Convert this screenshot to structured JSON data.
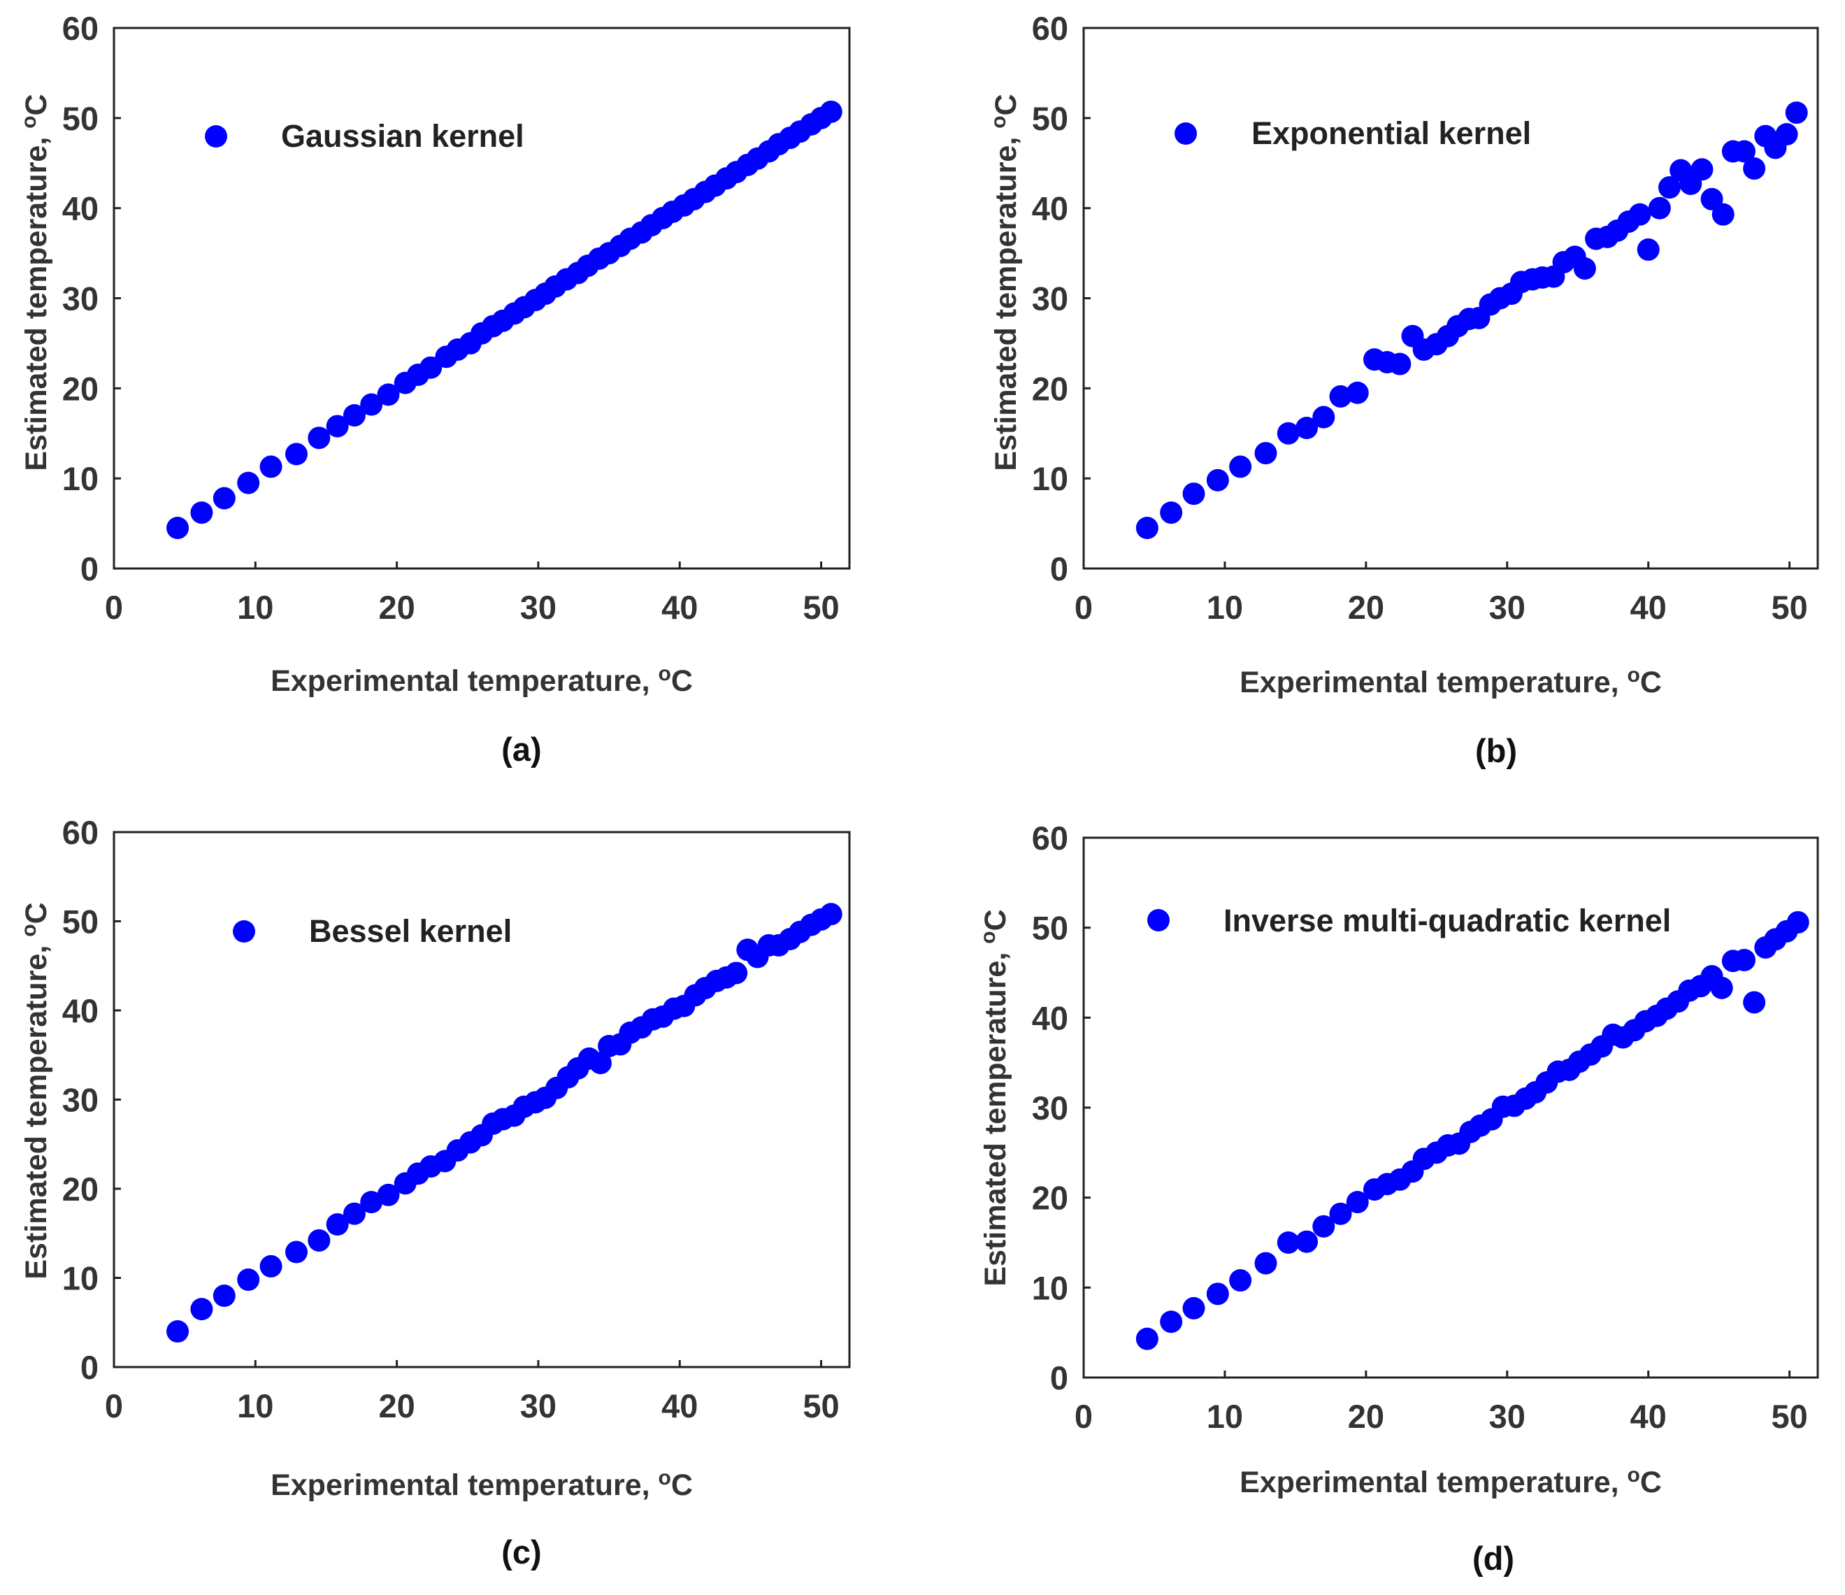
{
  "colors": {
    "marker": "#0000ff",
    "axis": "#222222",
    "text": "#333333"
  },
  "chart_data": [
    {
      "type": "scatter",
      "title": "",
      "caption": "(a)",
      "legend": "Gaussian kernel",
      "legend_position": "top-left",
      "xlabel": "Experimental temperature, ",
      "ylabel": "Estimated temperature, ",
      "unit_sup": "o",
      "unit": "C",
      "xlim": [
        0,
        52
      ],
      "ylim": [
        0,
        60
      ],
      "xticks": [
        0,
        10,
        20,
        30,
        40,
        50
      ],
      "yticks": [
        0,
        10,
        20,
        30,
        40,
        50,
        60
      ],
      "series": [
        {
          "name": "Gaussian kernel",
          "x": [
            4.5,
            6.2,
            7.8,
            9.5,
            11.1,
            12.9,
            14.5,
            15.8,
            17,
            18.2,
            19.4,
            20.6,
            21.5,
            22.4,
            23.5,
            24.3,
            25.2,
            26,
            26.8,
            27.5,
            28.3,
            29,
            29.8,
            30.5,
            31.2,
            32,
            32.8,
            33.5,
            34.3,
            35,
            35.8,
            36.5,
            37.3,
            38,
            38.8,
            39.5,
            40.3,
            41,
            41.8,
            42.5,
            43.3,
            44,
            44.8,
            45.5,
            46.3,
            47,
            47.8,
            48.5,
            49.3,
            50,
            50.7
          ],
          "y": [
            4.5,
            6.2,
            7.8,
            9.5,
            11.3,
            12.7,
            14.5,
            15.8,
            17,
            18.2,
            19.3,
            20.6,
            21.5,
            22.3,
            23.5,
            24.3,
            25,
            26.1,
            26.9,
            27.5,
            28.3,
            29,
            29.8,
            30.5,
            31.3,
            32.1,
            32.8,
            33.6,
            34.4,
            35,
            35.8,
            36.6,
            37.3,
            38.1,
            38.9,
            39.6,
            40.3,
            41,
            41.8,
            42.5,
            43.3,
            44,
            44.8,
            45.5,
            46.3,
            47.1,
            47.8,
            48.5,
            49.3,
            50,
            50.7
          ]
        }
      ]
    },
    {
      "type": "scatter",
      "title": "",
      "caption": "(b)",
      "legend": "Exponential kernel",
      "legend_position": "top-left",
      "xlabel": "Experimental temperature, ",
      "ylabel": "Estimated temperature, ",
      "unit_sup": "o",
      "unit": "C",
      "xlim": [
        0,
        52
      ],
      "ylim": [
        0,
        60
      ],
      "xticks": [
        0,
        10,
        20,
        30,
        40,
        50
      ],
      "yticks": [
        0,
        10,
        20,
        30,
        40,
        50,
        60
      ],
      "series": [
        {
          "name": "Exponential kernel",
          "x": [
            4.5,
            6.2,
            7.8,
            9.5,
            11.1,
            12.9,
            14.5,
            15.8,
            17,
            18.2,
            19.4,
            20.6,
            21.5,
            22.4,
            23.3,
            24.1,
            25,
            25.8,
            26.5,
            27.3,
            28,
            28.8,
            29.5,
            30.3,
            31,
            31.8,
            32.5,
            33.3,
            34,
            34.8,
            35.5,
            36.3,
            37.1,
            37.8,
            38.6,
            39.4,
            40,
            40.8,
            41.5,
            42.3,
            43,
            43.8,
            44.5,
            45.3,
            46,
            46.8,
            47.5,
            48.3,
            49,
            49.8,
            50.5
          ],
          "y": [
            4.5,
            6.2,
            8.3,
            9.8,
            11.3,
            12.8,
            15,
            15.6,
            16.8,
            19.1,
            19.5,
            23.2,
            22.9,
            22.7,
            25.8,
            24.3,
            24.9,
            25.8,
            26.9,
            27.7,
            27.8,
            29.3,
            30,
            30.5,
            31.8,
            32.1,
            32.3,
            32.4,
            34,
            34.6,
            33.3,
            36.6,
            36.8,
            37.5,
            38.5,
            39.3,
            35.4,
            40,
            42.3,
            44.2,
            42.7,
            44.3,
            41,
            39.3,
            46.3,
            46.3,
            44.4,
            48,
            46.7,
            48.2,
            50.6
          ]
        }
      ]
    },
    {
      "type": "scatter",
      "title": "",
      "caption": "(c)",
      "legend": "Bessel kernel",
      "legend_position": "top-left",
      "xlabel": "Experimental temperature, ",
      "ylabel": "Estimated temperature, ",
      "unit_sup": "o",
      "unit": "C",
      "xlim": [
        0,
        52
      ],
      "ylim": [
        0,
        60
      ],
      "xticks": [
        0,
        10,
        20,
        30,
        40,
        50
      ],
      "yticks": [
        0,
        10,
        20,
        30,
        40,
        50,
        60
      ],
      "series": [
        {
          "name": "Bessel kernel",
          "x": [
            4.5,
            6.2,
            7.8,
            9.5,
            11.1,
            12.9,
            14.5,
            15.8,
            17,
            18.2,
            19.4,
            20.6,
            21.5,
            22.4,
            23.4,
            24.3,
            25.2,
            26,
            26.8,
            27.5,
            28.3,
            29,
            29.8,
            30.5,
            31.3,
            32.1,
            32.8,
            33.6,
            34.4,
            35,
            35.8,
            36.5,
            37.3,
            38.1,
            38.8,
            39.6,
            40.3,
            41.1,
            41.8,
            42.6,
            43.3,
            44,
            44.8,
            45.5,
            46.3,
            47,
            47.8,
            48.5,
            49.3,
            50,
            50.7
          ],
          "y": [
            4,
            6.5,
            8,
            9.8,
            11.3,
            12.9,
            14.2,
            16,
            17.2,
            18.5,
            19.3,
            20.6,
            21.7,
            22.5,
            23.1,
            24.3,
            25.2,
            26,
            27.3,
            27.8,
            28.2,
            29.2,
            29.7,
            30.2,
            31.3,
            32.5,
            33.5,
            34.6,
            34.1,
            36,
            36.2,
            37.5,
            38.1,
            39,
            39.3,
            40.2,
            40.5,
            41.7,
            42.5,
            43.3,
            43.7,
            44.2,
            46.8,
            46,
            47.3,
            47.3,
            48,
            48.8,
            49.6,
            50.2,
            50.8
          ]
        }
      ]
    },
    {
      "type": "scatter",
      "title": "",
      "caption": "(d)",
      "legend": "Inverse multi-quadratic kernel",
      "legend_position": "top-left",
      "xlabel": "Experimental temperature, ",
      "ylabel": "Estimated temperature, ",
      "unit_sup": "o",
      "unit": "C",
      "xlim": [
        0,
        52
      ],
      "ylim": [
        0,
        60
      ],
      "xticks": [
        0,
        10,
        20,
        30,
        40,
        50
      ],
      "yticks": [
        0,
        10,
        20,
        30,
        40,
        50,
        60
      ],
      "series": [
        {
          "name": "Inverse multi-quadratic kernel",
          "x": [
            4.5,
            6.2,
            7.8,
            9.5,
            11.1,
            12.9,
            14.5,
            15.8,
            17,
            18.2,
            19.4,
            20.6,
            21.5,
            22.4,
            23.3,
            24.1,
            25,
            25.8,
            26.6,
            27.4,
            28.1,
            28.9,
            29.7,
            30.5,
            31.3,
            32,
            32.8,
            33.6,
            34.4,
            35.1,
            35.9,
            36.7,
            37.5,
            38.2,
            39,
            39.8,
            40.6,
            41.3,
            42.1,
            42.9,
            43.7,
            44.5,
            45.2,
            46,
            46.8,
            47.5,
            48.3,
            49,
            49.8,
            50.6
          ],
          "y": [
            4.3,
            6.2,
            7.7,
            9.3,
            10.8,
            12.7,
            15,
            15.1,
            16.8,
            18.2,
            19.5,
            20.9,
            21.5,
            22,
            22.9,
            24.3,
            25,
            25.8,
            26,
            27.3,
            28,
            28.7,
            30.1,
            30.2,
            31,
            31.7,
            32.8,
            34,
            34.2,
            35.1,
            35.9,
            36.8,
            38.1,
            37.8,
            38.6,
            39.6,
            40.2,
            41,
            41.8,
            43,
            43.5,
            44.6,
            43.3,
            46.3,
            46.4,
            41.7,
            47.8,
            48.7,
            49.6,
            50.6
          ]
        }
      ]
    }
  ]
}
